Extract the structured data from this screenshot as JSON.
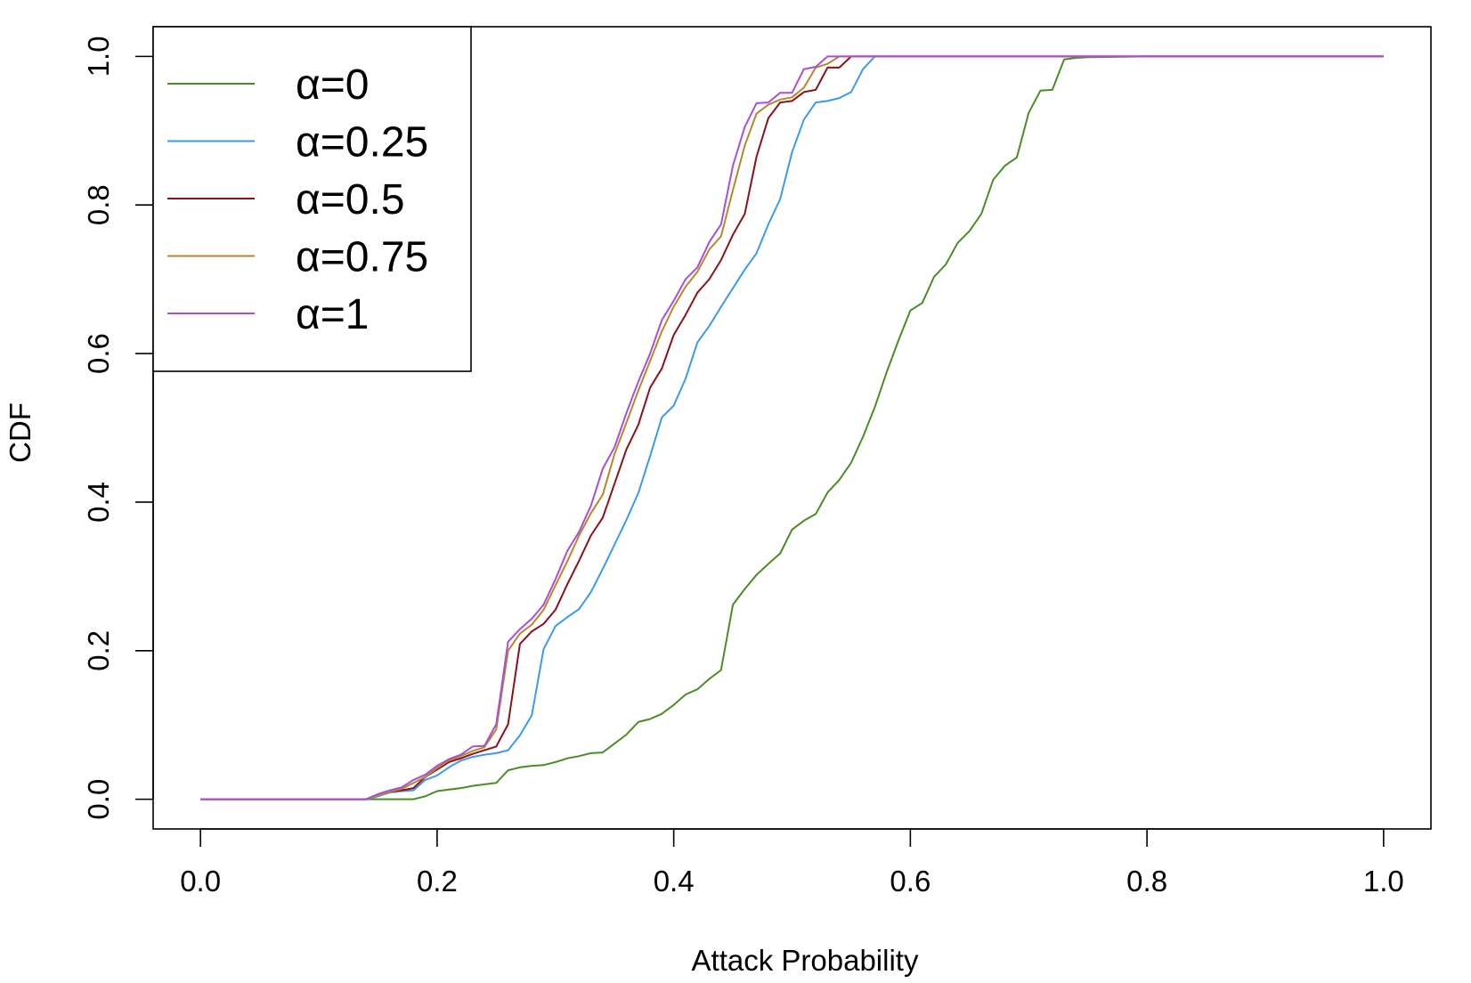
{
  "chart_data": {
    "type": "line",
    "title": "",
    "xlabel": "Attack Probability",
    "ylabel": "CDF",
    "xlim": [
      -0.04,
      1.04
    ],
    "ylim": [
      -0.04,
      1.04
    ],
    "xticks": [
      0.0,
      0.2,
      0.4,
      0.6,
      0.8,
      1.0
    ],
    "xtick_labels": [
      "0.0",
      "0.2",
      "0.4",
      "0.6",
      "0.8",
      "1.0"
    ],
    "yticks": [
      0.0,
      0.2,
      0.4,
      0.6,
      0.8,
      1.0
    ],
    "ytick_labels": [
      "0.0",
      "0.2",
      "0.4",
      "0.6",
      "0.8",
      "1.0"
    ],
    "grid": false,
    "legend_position": "top-left",
    "series": [
      {
        "name": "α=0",
        "color": "#4c8c22",
        "points": [
          [
            0,
            0
          ],
          [
            0.14,
            0
          ],
          [
            0.15,
            0
          ],
          [
            0.16,
            0
          ],
          [
            0.17,
            0
          ],
          [
            0.18,
            0
          ],
          [
            0.19,
            0.004
          ],
          [
            0.2,
            0.011
          ],
          [
            0.21,
            0.013
          ],
          [
            0.22,
            0.015
          ],
          [
            0.23,
            0.018
          ],
          [
            0.24,
            0.02
          ],
          [
            0.25,
            0.022
          ],
          [
            0.26,
            0.039
          ],
          [
            0.27,
            0.043
          ],
          [
            0.28,
            0.045
          ],
          [
            0.29,
            0.046
          ],
          [
            0.3,
            0.05
          ],
          [
            0.31,
            0.055
          ],
          [
            0.32,
            0.058
          ],
          [
            0.33,
            0.062
          ],
          [
            0.34,
            0.063
          ],
          [
            0.35,
            0.075
          ],
          [
            0.36,
            0.087
          ],
          [
            0.37,
            0.104
          ],
          [
            0.38,
            0.108
          ],
          [
            0.39,
            0.115
          ],
          [
            0.4,
            0.127
          ],
          [
            0.41,
            0.141
          ],
          [
            0.42,
            0.148
          ],
          [
            0.43,
            0.162
          ],
          [
            0.44,
            0.174
          ],
          [
            0.45,
            0.262
          ],
          [
            0.46,
            0.283
          ],
          [
            0.47,
            0.302
          ],
          [
            0.48,
            0.317
          ],
          [
            0.49,
            0.331
          ],
          [
            0.5,
            0.363
          ],
          [
            0.51,
            0.375
          ],
          [
            0.52,
            0.384
          ],
          [
            0.53,
            0.413
          ],
          [
            0.54,
            0.43
          ],
          [
            0.55,
            0.453
          ],
          [
            0.56,
            0.488
          ],
          [
            0.57,
            0.528
          ],
          [
            0.58,
            0.575
          ],
          [
            0.59,
            0.618
          ],
          [
            0.6,
            0.658
          ],
          [
            0.61,
            0.668
          ],
          [
            0.62,
            0.703
          ],
          [
            0.63,
            0.72
          ],
          [
            0.64,
            0.749
          ],
          [
            0.65,
            0.765
          ],
          [
            0.66,
            0.788
          ],
          [
            0.67,
            0.834
          ],
          [
            0.68,
            0.853
          ],
          [
            0.69,
            0.864
          ],
          [
            0.7,
            0.924
          ],
          [
            0.71,
            0.954
          ],
          [
            0.72,
            0.955
          ],
          [
            0.73,
            0.996
          ],
          [
            0.74,
            0.998
          ],
          [
            0.75,
            0.999
          ],
          [
            0.8,
            1.0
          ],
          [
            1.0,
            1.0
          ]
        ]
      },
      {
        "name": "α=0.25",
        "color": "#3a9af0",
        "points": [
          [
            0,
            0
          ],
          [
            0.14,
            0
          ],
          [
            0.15,
            0.004
          ],
          [
            0.16,
            0.009
          ],
          [
            0.17,
            0.011
          ],
          [
            0.18,
            0.012
          ],
          [
            0.19,
            0.026
          ],
          [
            0.2,
            0.032
          ],
          [
            0.21,
            0.043
          ],
          [
            0.22,
            0.052
          ],
          [
            0.23,
            0.057
          ],
          [
            0.24,
            0.06
          ],
          [
            0.25,
            0.062
          ],
          [
            0.26,
            0.066
          ],
          [
            0.27,
            0.086
          ],
          [
            0.28,
            0.113
          ],
          [
            0.29,
            0.202
          ],
          [
            0.3,
            0.233
          ],
          [
            0.31,
            0.245
          ],
          [
            0.32,
            0.256
          ],
          [
            0.33,
            0.279
          ],
          [
            0.34,
            0.31
          ],
          [
            0.35,
            0.343
          ],
          [
            0.36,
            0.376
          ],
          [
            0.37,
            0.412
          ],
          [
            0.38,
            0.462
          ],
          [
            0.39,
            0.514
          ],
          [
            0.4,
            0.53
          ],
          [
            0.41,
            0.566
          ],
          [
            0.42,
            0.615
          ],
          [
            0.43,
            0.637
          ],
          [
            0.44,
            0.663
          ],
          [
            0.45,
            0.688
          ],
          [
            0.46,
            0.713
          ],
          [
            0.47,
            0.735
          ],
          [
            0.48,
            0.774
          ],
          [
            0.49,
            0.808
          ],
          [
            0.5,
            0.871
          ],
          [
            0.51,
            0.915
          ],
          [
            0.52,
            0.938
          ],
          [
            0.53,
            0.94
          ],
          [
            0.54,
            0.944
          ],
          [
            0.55,
            0.952
          ],
          [
            0.56,
            0.983
          ],
          [
            0.57,
            1.0
          ],
          [
            1.0,
            1.0
          ]
        ]
      },
      {
        "name": "α=0.5",
        "color": "#8b1218",
        "points": [
          [
            0,
            0
          ],
          [
            0.14,
            0
          ],
          [
            0.15,
            0.006
          ],
          [
            0.16,
            0.01
          ],
          [
            0.17,
            0.012
          ],
          [
            0.18,
            0.015
          ],
          [
            0.19,
            0.03
          ],
          [
            0.2,
            0.04
          ],
          [
            0.21,
            0.05
          ],
          [
            0.22,
            0.055
          ],
          [
            0.23,
            0.061
          ],
          [
            0.24,
            0.066
          ],
          [
            0.25,
            0.071
          ],
          [
            0.26,
            0.101
          ],
          [
            0.27,
            0.209
          ],
          [
            0.28,
            0.226
          ],
          [
            0.29,
            0.236
          ],
          [
            0.3,
            0.255
          ],
          [
            0.31,
            0.289
          ],
          [
            0.32,
            0.321
          ],
          [
            0.33,
            0.355
          ],
          [
            0.34,
            0.379
          ],
          [
            0.35,
            0.425
          ],
          [
            0.36,
            0.471
          ],
          [
            0.37,
            0.504
          ],
          [
            0.38,
            0.554
          ],
          [
            0.39,
            0.58
          ],
          [
            0.4,
            0.625
          ],
          [
            0.41,
            0.652
          ],
          [
            0.42,
            0.682
          ],
          [
            0.43,
            0.7
          ],
          [
            0.44,
            0.726
          ],
          [
            0.45,
            0.76
          ],
          [
            0.46,
            0.788
          ],
          [
            0.47,
            0.865
          ],
          [
            0.48,
            0.917
          ],
          [
            0.49,
            0.938
          ],
          [
            0.5,
            0.94
          ],
          [
            0.51,
            0.952
          ],
          [
            0.52,
            0.955
          ],
          [
            0.53,
            0.985
          ],
          [
            0.54,
            0.985
          ],
          [
            0.55,
            1.0
          ],
          [
            1.0,
            1.0
          ]
        ]
      },
      {
        "name": "α=0.75",
        "color": "#b8862c",
        "points": [
          [
            0,
            0
          ],
          [
            0.14,
            0
          ],
          [
            0.15,
            0.005
          ],
          [
            0.16,
            0.01
          ],
          [
            0.17,
            0.014
          ],
          [
            0.18,
            0.022
          ],
          [
            0.19,
            0.03
          ],
          [
            0.2,
            0.042
          ],
          [
            0.21,
            0.052
          ],
          [
            0.22,
            0.058
          ],
          [
            0.23,
            0.065
          ],
          [
            0.24,
            0.07
          ],
          [
            0.25,
            0.094
          ],
          [
            0.26,
            0.2
          ],
          [
            0.27,
            0.223
          ],
          [
            0.28,
            0.235
          ],
          [
            0.29,
            0.255
          ],
          [
            0.3,
            0.288
          ],
          [
            0.31,
            0.32
          ],
          [
            0.32,
            0.355
          ],
          [
            0.33,
            0.385
          ],
          [
            0.34,
            0.41
          ],
          [
            0.35,
            0.465
          ],
          [
            0.36,
            0.507
          ],
          [
            0.37,
            0.55
          ],
          [
            0.38,
            0.59
          ],
          [
            0.39,
            0.63
          ],
          [
            0.4,
            0.663
          ],
          [
            0.41,
            0.69
          ],
          [
            0.42,
            0.71
          ],
          [
            0.43,
            0.74
          ],
          [
            0.44,
            0.758
          ],
          [
            0.45,
            0.82
          ],
          [
            0.46,
            0.88
          ],
          [
            0.47,
            0.923
          ],
          [
            0.48,
            0.935
          ],
          [
            0.49,
            0.942
          ],
          [
            0.5,
            0.945
          ],
          [
            0.51,
            0.958
          ],
          [
            0.52,
            0.985
          ],
          [
            0.53,
            0.99
          ],
          [
            0.54,
            1.0
          ],
          [
            1.0,
            1.0
          ]
        ]
      },
      {
        "name": "α=1",
        "color": "#a84fd6",
        "points": [
          [
            0,
            0
          ],
          [
            0.14,
            0
          ],
          [
            0.15,
            0.007
          ],
          [
            0.16,
            0.012
          ],
          [
            0.17,
            0.016
          ],
          [
            0.18,
            0.026
          ],
          [
            0.19,
            0.033
          ],
          [
            0.2,
            0.045
          ],
          [
            0.21,
            0.054
          ],
          [
            0.22,
            0.06
          ],
          [
            0.23,
            0.071
          ],
          [
            0.24,
            0.072
          ],
          [
            0.25,
            0.101
          ],
          [
            0.26,
            0.212
          ],
          [
            0.27,
            0.229
          ],
          [
            0.28,
            0.243
          ],
          [
            0.29,
            0.262
          ],
          [
            0.3,
            0.296
          ],
          [
            0.31,
            0.334
          ],
          [
            0.32,
            0.36
          ],
          [
            0.33,
            0.395
          ],
          [
            0.34,
            0.445
          ],
          [
            0.35,
            0.474
          ],
          [
            0.36,
            0.52
          ],
          [
            0.37,
            0.562
          ],
          [
            0.38,
            0.6
          ],
          [
            0.39,
            0.645
          ],
          [
            0.4,
            0.671
          ],
          [
            0.41,
            0.7
          ],
          [
            0.42,
            0.716
          ],
          [
            0.43,
            0.75
          ],
          [
            0.44,
            0.774
          ],
          [
            0.45,
            0.853
          ],
          [
            0.46,
            0.905
          ],
          [
            0.47,
            0.937
          ],
          [
            0.48,
            0.938
          ],
          [
            0.49,
            0.951
          ],
          [
            0.5,
            0.951
          ],
          [
            0.51,
            0.983
          ],
          [
            0.52,
            0.986
          ],
          [
            0.53,
            1.0
          ],
          [
            1.0,
            1.0
          ]
        ]
      }
    ]
  }
}
